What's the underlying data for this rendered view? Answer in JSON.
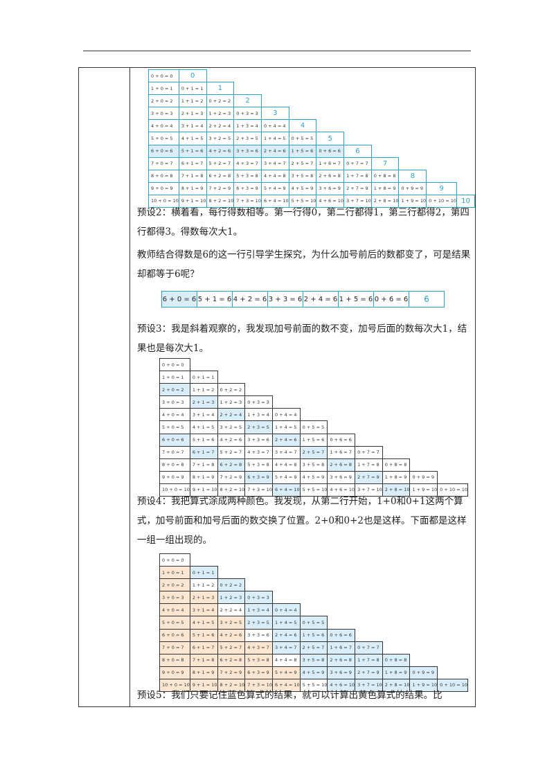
{
  "tables": {
    "rows": [
      [
        "0 + 0 = 0"
      ],
      [
        "1 + 0 = 1",
        "0 + 1 = 1"
      ],
      [
        "2 + 0 = 2",
        "1 + 1 = 2",
        "0 + 2 = 2"
      ],
      [
        "3 + 0 = 3",
        "2 + 1 = 3",
        "1 + 2 = 3",
        "0 + 3 = 3"
      ],
      [
        "4 + 0 = 4",
        "3 + 1 = 4",
        "2 + 2 = 4",
        "1 + 3 = 4",
        "0 + 4 = 4"
      ],
      [
        "5 + 0 = 5",
        "4 + 1 = 5",
        "3 + 2 = 5",
        "2 + 3 = 5",
        "1 + 4 = 5",
        "0 + 5 = 5"
      ],
      [
        "6 + 0 = 6",
        "5 + 1 = 6",
        "4 + 2 = 6",
        "3 + 3 = 6",
        "2 + 4 = 6",
        "1 + 5 = 6",
        "0 + 6 = 6"
      ],
      [
        "7 + 0 = 7",
        "6 + 1 = 7",
        "5 + 2 = 7",
        "4 + 3 = 7",
        "3 + 4 = 7",
        "2 + 5 = 7",
        "1 + 6 = 7",
        "0 + 7 = 7"
      ],
      [
        "8 + 0 = 8",
        "7 + 1 = 8",
        "6 + 2 = 8",
        "5 + 3 = 8",
        "4 + 4 = 8",
        "3 + 5 = 8",
        "2 + 6 = 8",
        "1 + 7 = 8",
        "0 + 8 = 8"
      ],
      [
        "9 + 0 = 9",
        "8 + 1 = 9",
        "7 + 2 = 9",
        "6 + 3 = 9",
        "5 + 4 = 9",
        "4 + 5 = 9",
        "3 + 6 = 9",
        "2 + 7 = 9",
        "1 + 8 = 9",
        "0 + 9 = 9"
      ],
      [
        "10 + 0 = 10",
        "9 + 1 = 10",
        "8 + 2 = 10",
        "7 + 3 = 10",
        "6 + 4 = 10",
        "5 + 5 = 10",
        "4 + 6 = 10",
        "3 + 7 = 10",
        "2 + 8 = 10",
        "1 + 9 = 10",
        "0 + 10 = 10"
      ]
    ],
    "row_results": [
      "0",
      "1",
      "2",
      "3",
      "4",
      "5",
      "6",
      "7",
      "8",
      "9",
      "10"
    ],
    "highlight_color": "#d9eef8",
    "warm_color": "#fbe6d2",
    "accent_color": "#2aa0c8"
  },
  "paragraphs": {
    "p1": "预设2：横着看，每行得数相等。第一行得0，第二行都得1，第三行都得2，第四行都得3。得数每次大1。",
    "p2": "教师结合得数是6的这一行引导学生探究，为什么加号前后的数都变了，可是结果却都等于6呢？",
    "p3": "预设3：我是斜着观察的，我发现加号前面的数不变，加号后面的数每次大1，结果也是每次大1。",
    "p4": "预设4：我把算式涂成两种颜色。我发现，从第二行开始，1+0和0+1这两个算式，加号前面和加号后面的数交换了位置。2+0和0+2也是这样。下面都是这样一组一组出现的。",
    "p5": "预设5：我们只要记住蓝色算式的结果，就可以计算出黄色算式的结果。比"
  },
  "row6_strip": {
    "items": [
      "6 + 0 = 6",
      "5 + 1 = 6",
      "4 + 2 = 6",
      "3 + 3 = 6",
      "2 + 4 = 6",
      "1 + 5 = 6",
      "0 + 6 = 6"
    ],
    "result": "6"
  }
}
